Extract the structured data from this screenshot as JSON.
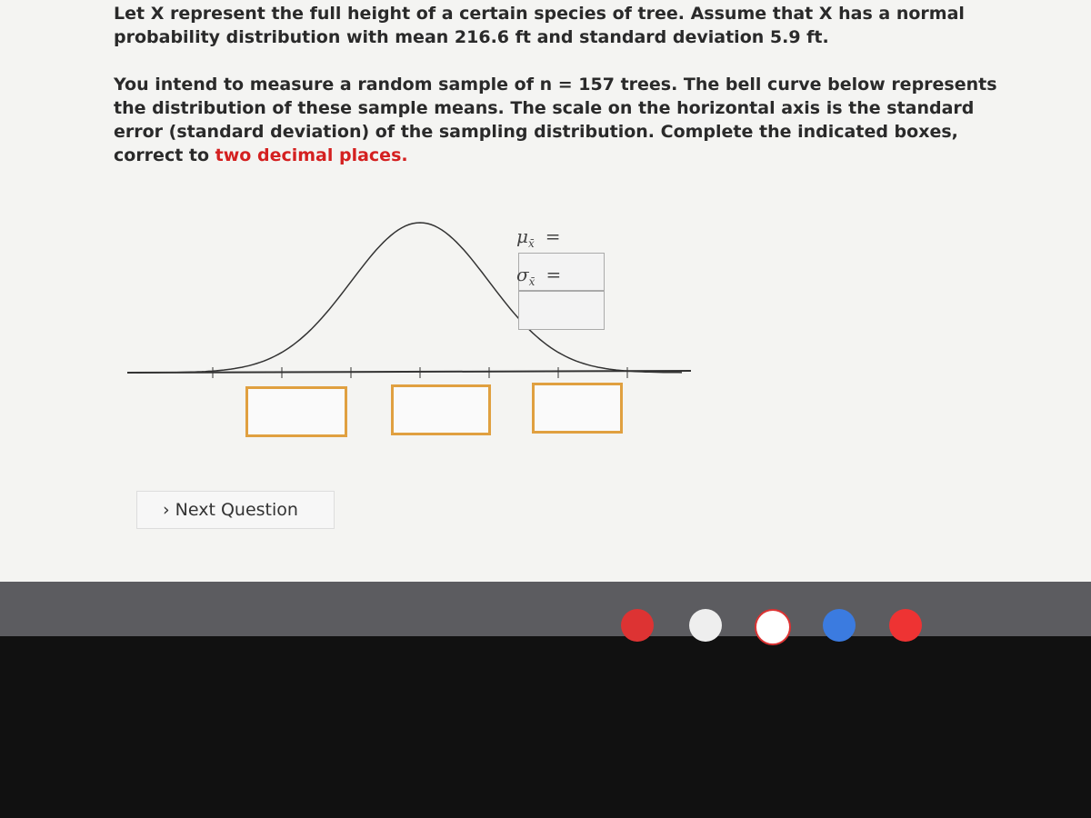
{
  "question": {
    "paragraph_1": "Let X represent the full height of a certain species of tree. Assume that X has a normal probability distribution with mean 216.6 ft and standard deviation 5.9 ft.",
    "paragraph_2": "You intend to measure a random sample of n = 157 trees. The bell curve below represents the distribution of these sample means. The scale on the horizontal axis is the standard error (standard deviation) of the sampling distribution. Complete the indicated boxes, correct to",
    "highlight": "two decimal places."
  },
  "labels": {
    "mu": {
      "symbol": "μ",
      "sub": "x̄",
      "equals": "="
    },
    "sigma": {
      "symbol": "σ",
      "sub": "x̄",
      "equals": "="
    }
  },
  "button": "Next Question"
}
